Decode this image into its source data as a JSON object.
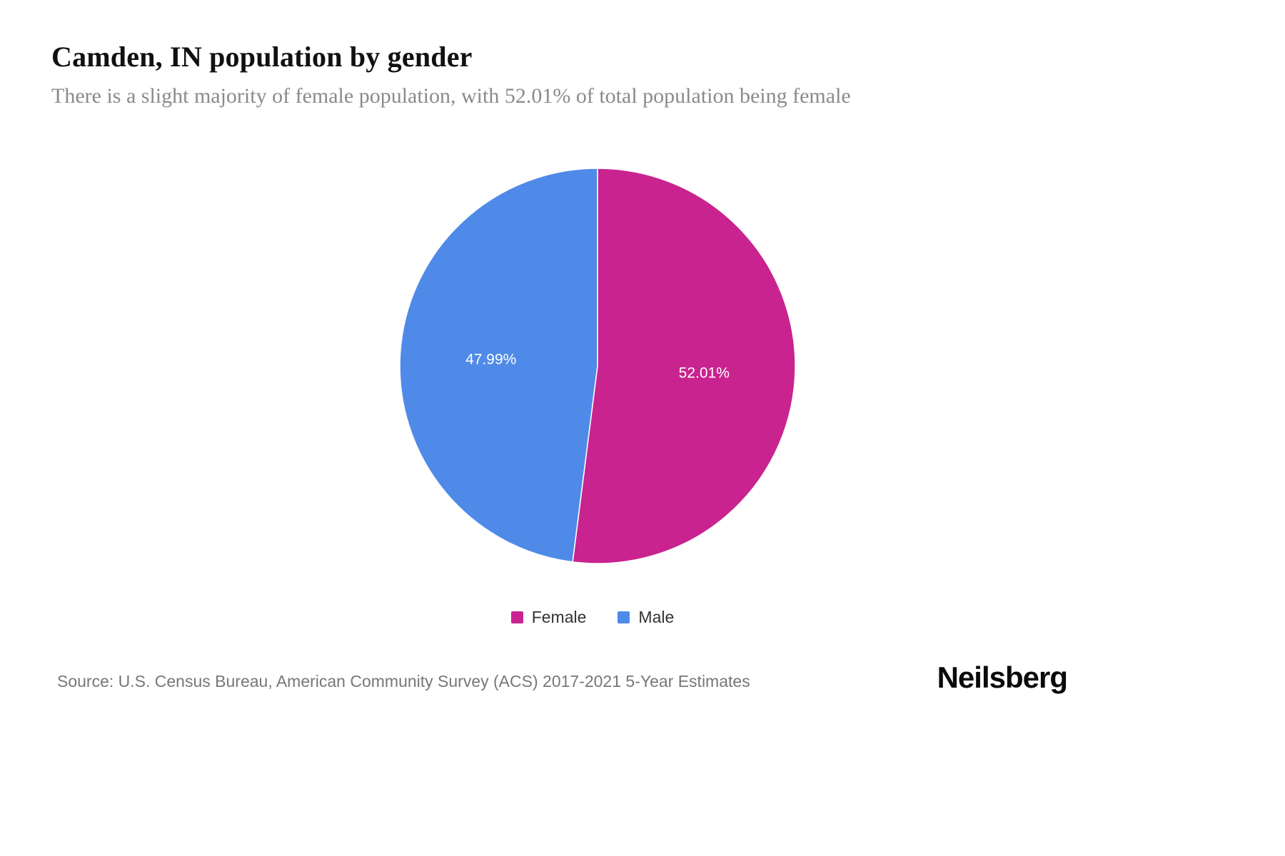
{
  "page": {
    "title": "Camden, IN population by gender",
    "subtitle": "There is a slight majority of female population, with 52.01% of total population being female",
    "source": "Source: U.S. Census Bureau, American Community Survey (ACS) 2017-2021 5-Year Estimates",
    "brand": "Neilsberg"
  },
  "chart_data": {
    "type": "pie",
    "title": "Camden, IN population by gender",
    "start_angle_deg": 0,
    "direction": "clockwise",
    "label_color": "#ffffff",
    "legend_position": "bottom",
    "slices": [
      {
        "label": "Female",
        "value": 52.01,
        "display": "52.01%",
        "color": "#c9238f"
      },
      {
        "label": "Male",
        "value": 47.99,
        "display": "47.99%",
        "color": "#4f8ae8"
      }
    ]
  }
}
